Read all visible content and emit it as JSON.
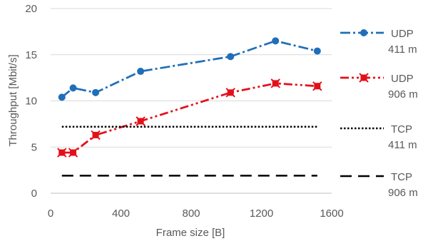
{
  "chart_data": {
    "type": "line",
    "xlabel": "Frame size [B]",
    "ylabel": "Throughput [Mbit/s]",
    "xlim": [
      0,
      1600
    ],
    "ylim": [
      0,
      20
    ],
    "x_ticks": [
      0,
      400,
      800,
      1200,
      1600
    ],
    "y_ticks": [
      0,
      5,
      10,
      15,
      20
    ],
    "grid": "horizontal",
    "legend_position": "right",
    "series": [
      {
        "label_lines": [
          "UDP",
          "411 m"
        ],
        "color": "#1F6FB8",
        "line_style": "dash-dot",
        "marker": "circle",
        "x": [
          64,
          128,
          256,
          512,
          1024,
          1280,
          1518
        ],
        "y": [
          10.4,
          11.4,
          10.9,
          13.2,
          14.8,
          16.5,
          15.4
        ]
      },
      {
        "label_lines": [
          "UDP",
          "906 m"
        ],
        "color": "#E3101A",
        "line_style": "dash-dot-dot",
        "marker": "square",
        "x": [
          64,
          128,
          256,
          512,
          1024,
          1280,
          1518
        ],
        "y": [
          4.4,
          4.4,
          6.3,
          7.8,
          10.9,
          11.9,
          11.6
        ]
      },
      {
        "label_lines": [
          "TCP",
          "411 m"
        ],
        "color": "#000000",
        "line_style": "dotted",
        "marker": "none",
        "x": [
          64,
          1518
        ],
        "y": [
          7.2,
          7.2
        ]
      },
      {
        "label_lines": [
          "TCP",
          "906 m"
        ],
        "color": "#000000",
        "line_style": "long-dash",
        "marker": "none",
        "x": [
          64,
          1518
        ],
        "y": [
          1.9,
          1.9
        ]
      }
    ]
  }
}
